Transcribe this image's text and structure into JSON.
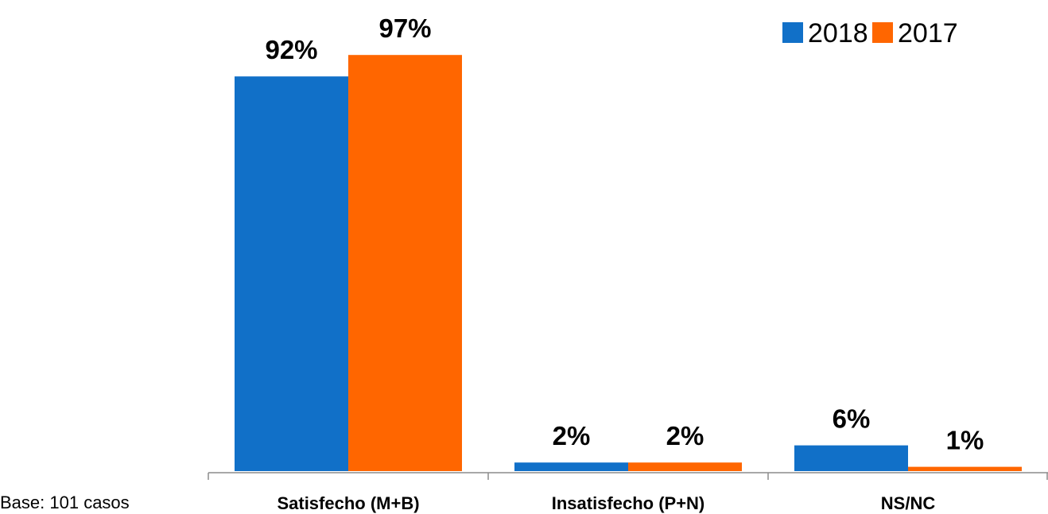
{
  "chart_data": {
    "type": "bar",
    "categories": [
      "Satisfecho (M+B)",
      "Insatisfecho (P+N)",
      "NS/NC"
    ],
    "series": [
      {
        "name": "2018",
        "values": [
          92,
          2,
          6
        ],
        "labels": [
          "92%",
          "2%",
          "6%"
        ],
        "color": "#1170C8"
      },
      {
        "name": "2017",
        "values": [
          97,
          2,
          1
        ],
        "labels": [
          "97%",
          "2%",
          "1%"
        ],
        "color": "#FF6600"
      }
    ],
    "ylim": [
      0,
      100
    ],
    "legend_position": "top-right",
    "grid": false,
    "title": "",
    "xlabel": "",
    "ylabel": ""
  },
  "footnote": "Base: 101 casos"
}
